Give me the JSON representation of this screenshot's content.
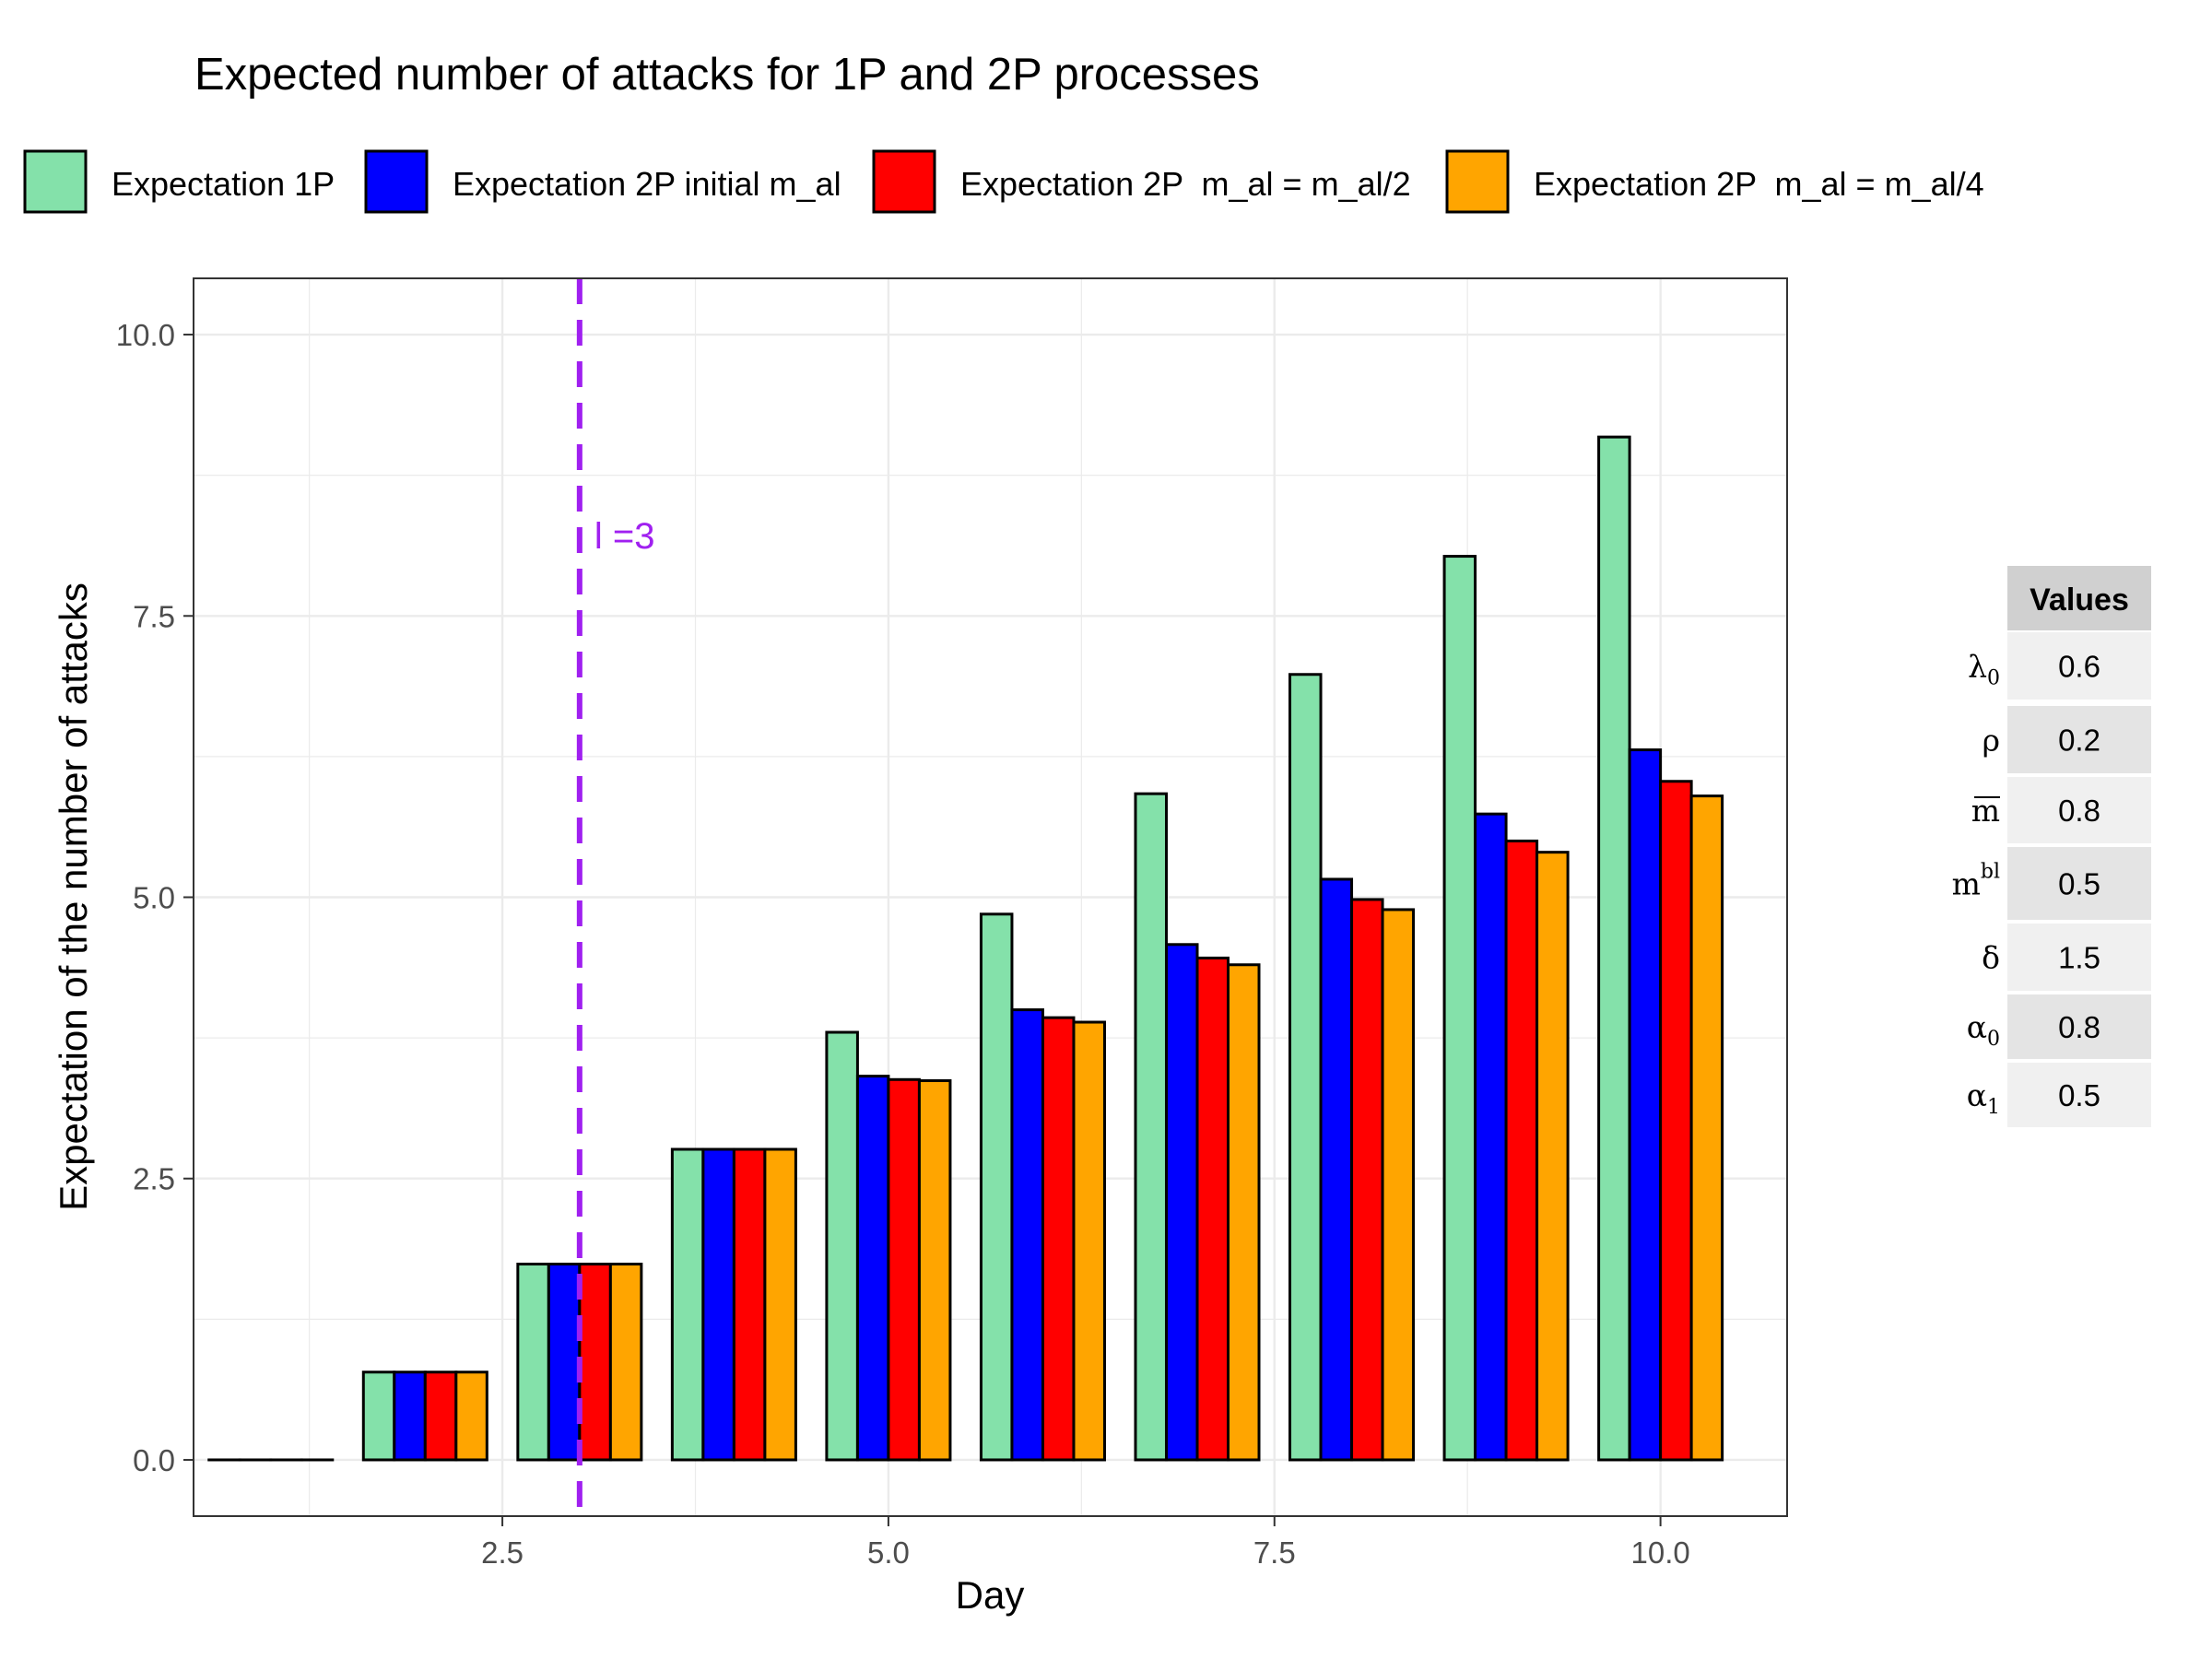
{
  "chart_data": {
    "type": "bar",
    "title": "Expected number of attacks for 1P and 2P processes",
    "xlabel": "Day",
    "ylabel": "Expectation of the number of attacks",
    "xlim": [
      0.5,
      10.82
    ],
    "ylim": [
      -0.5,
      10.5
    ],
    "xticks": [
      2.5,
      5.0,
      7.5,
      10.0
    ],
    "xtick_labels": [
      "2.5",
      "5.0",
      "7.5",
      "10.0"
    ],
    "yticks": [
      0.0,
      2.5,
      5.0,
      7.5,
      10.0
    ],
    "ytick_labels": [
      "0.0",
      "2.5",
      "5.0",
      "7.5",
      "10.0"
    ],
    "grid": true,
    "legend_position": "top",
    "days": [
      1,
      2,
      3,
      4,
      5,
      6,
      7,
      8,
      9,
      10
    ],
    "series": [
      {
        "name": "Expectation 1P",
        "color": "#84E1AA",
        "values": [
          0,
          0.78,
          1.74,
          2.76,
          3.8,
          4.85,
          5.92,
          6.98,
          8.03,
          9.09
        ]
      },
      {
        "name": "Expectation 2P initial m_al",
        "color": "#0000FF",
        "values": [
          0,
          0.78,
          1.74,
          2.76,
          3.41,
          4.0,
          4.58,
          5.16,
          5.74,
          6.31
        ]
      },
      {
        "name": "Expectation 2P  m_al = m_al/2",
        "color": "#FF0000",
        "values": [
          0,
          0.78,
          1.74,
          2.76,
          3.38,
          3.93,
          4.46,
          4.98,
          5.5,
          6.03
        ]
      },
      {
        "name": "Expectation 2P  m_al = m_al/4",
        "color": "#FFA500",
        "values": [
          0,
          0.78,
          1.74,
          2.76,
          3.37,
          3.89,
          4.4,
          4.89,
          5.4,
          5.9
        ]
      }
    ],
    "vline": {
      "x": 3,
      "label": "l =3",
      "color": "#A020F0"
    },
    "parameter_table": {
      "header": "Values",
      "rows": [
        {
          "symbol": "λ",
          "subscript": "0",
          "superscript": "",
          "overline": false,
          "value": "0.6"
        },
        {
          "symbol": "ρ",
          "subscript": "",
          "superscript": "",
          "overline": false,
          "value": "0.2"
        },
        {
          "symbol": "m",
          "subscript": "",
          "superscript": "",
          "overline": true,
          "value": "0.8"
        },
        {
          "symbol": "m",
          "subscript": "",
          "superscript": "bl",
          "overline": false,
          "value": "0.5"
        },
        {
          "symbol": "δ",
          "subscript": "",
          "superscript": "",
          "overline": false,
          "value": "1.5"
        },
        {
          "symbol": "α",
          "subscript": "0",
          "superscript": "",
          "overline": false,
          "value": "0.8"
        },
        {
          "symbol": "α",
          "subscript": "1",
          "superscript": "",
          "overline": false,
          "value": "0.5"
        }
      ]
    }
  }
}
